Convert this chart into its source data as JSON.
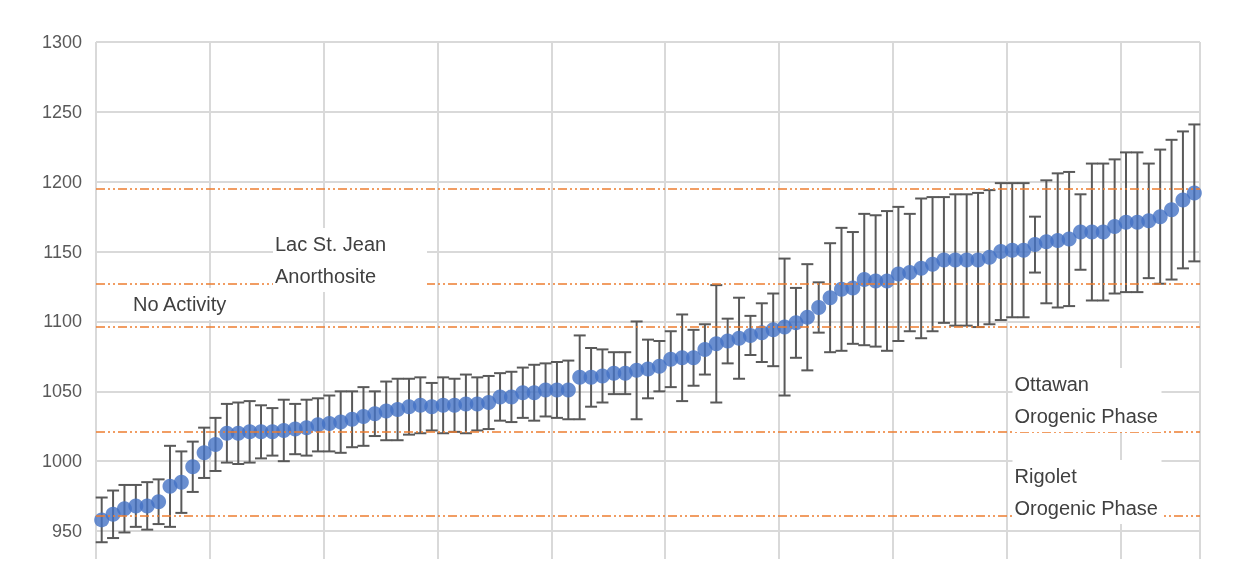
{
  "chart_data": {
    "type": "scatter",
    "categories": [
      null,
      null,
      null,
      null,
      null,
      null,
      null,
      null,
      null,
      null,
      null,
      null,
      null,
      null,
      null,
      null,
      null,
      null,
      null,
      null,
      null,
      null,
      null,
      null,
      null,
      null,
      null,
      null,
      null,
      null,
      null,
      null,
      null,
      null,
      null,
      null,
      null,
      null,
      null,
      null,
      null,
      null,
      null,
      null,
      null,
      null,
      null,
      null,
      null,
      null,
      null,
      null,
      null,
      null,
      null,
      null,
      null,
      null,
      null,
      null,
      null,
      null,
      null,
      null,
      null,
      null,
      null,
      null,
      null,
      null,
      null,
      null,
      null,
      null,
      null,
      null,
      null,
      null,
      null,
      null,
      null,
      null,
      null,
      null,
      null,
      null,
      null,
      null,
      null,
      null,
      null,
      null,
      null,
      null,
      null,
      null,
      null
    ],
    "values": [
      958,
      962,
      966,
      968,
      968,
      971,
      982,
      985,
      996,
      1006,
      1012,
      1020,
      1020,
      1021,
      1021,
      1021,
      1022,
      1023,
      1024,
      1026,
      1027,
      1028,
      1030,
      1032,
      1034,
      1036,
      1037,
      1039,
      1040,
      1039,
      1040,
      1040,
      1041,
      1041,
      1042,
      1046,
      1046,
      1049,
      1049,
      1051,
      1051,
      1051,
      1060,
      1060,
      1061,
      1063,
      1063,
      1065,
      1066,
      1068,
      1073,
      1074,
      1074,
      1080,
      1084,
      1086,
      1088,
      1090,
      1092,
      1094,
      1096,
      1099,
      1103,
      1110,
      1117,
      1123,
      1124,
      1130,
      1129,
      1129,
      1134,
      1135,
      1138,
      1141,
      1144,
      1144,
      1144,
      1144,
      1146,
      1150,
      1151,
      1151,
      1155,
      1157,
      1158,
      1159,
      1164,
      1164,
      1164,
      1168,
      1171,
      1171,
      1172,
      1175,
      1180,
      1187,
      1192
    ],
    "errors": [
      16,
      17,
      17,
      15,
      17,
      16,
      29,
      22,
      18,
      18,
      19,
      21,
      22,
      22,
      19,
      17,
      22,
      18,
      20,
      19,
      20,
      22,
      20,
      21,
      16,
      21,
      22,
      20,
      20,
      17,
      20,
      19,
      21,
      19,
      19,
      17,
      18,
      18,
      20,
      19,
      20,
      21,
      30,
      21,
      19,
      15,
      15,
      35,
      21,
      18,
      20,
      31,
      20,
      18,
      42,
      16,
      29,
      14,
      21,
      26,
      49,
      25,
      38,
      18,
      39,
      44,
      40,
      47,
      47,
      50,
      48,
      42,
      50,
      48,
      45,
      47,
      47,
      48,
      48,
      49,
      48,
      48,
      20,
      44,
      48,
      48,
      27,
      49,
      49,
      48,
      50,
      50,
      41,
      48,
      50,
      49,
      49
    ],
    "color": "#4472c4",
    "marker": "circle",
    "ylim": [
      930,
      1300
    ],
    "yticks": [
      950,
      1000,
      1050,
      1100,
      1150,
      1200,
      1250,
      1300
    ],
    "grid": true,
    "ref_lines": [
      {
        "axis": "y",
        "value": 961,
        "color": "#ed7d31",
        "line_style": "dashed"
      },
      {
        "axis": "y",
        "value": 1021,
        "color": "#ed7d31",
        "line_style": "dashed"
      },
      {
        "axis": "y",
        "value": 1096,
        "color": "#ed7d31",
        "line_style": "dashed"
      },
      {
        "axis": "y",
        "value": 1127,
        "color": "#ed7d31",
        "line_style": "dashed"
      },
      {
        "axis": "y",
        "value": 1195,
        "color": "#ed7d31",
        "line_style": "dashed"
      }
    ],
    "annotations": [
      "Lac St. Jean Anorthosite",
      "No Activity",
      "Ottawan Orogenic Phase",
      "Rigolet Orogenic Phase"
    ]
  }
}
